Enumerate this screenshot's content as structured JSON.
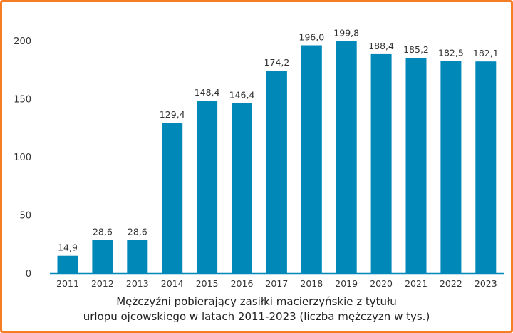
{
  "chart_data": {
    "type": "bar",
    "title_lines": [
      "Mężczyźni pobierający zasiłki macierzyńskie z tytułu",
      "urlopu ojcowskiego w latach 2011-2023 (liczba mężczyzn w tys.)"
    ],
    "categories": [
      "2011",
      "2012",
      "2013",
      "2014",
      "2015",
      "2016",
      "2017",
      "2018",
      "2019",
      "2020",
      "2021",
      "2022",
      "2023"
    ],
    "values": [
      14.9,
      28.6,
      28.6,
      129.4,
      148.4,
      146.4,
      174.2,
      196.0,
      199.8,
      188.4,
      185.2,
      182.5,
      182.1
    ],
    "labels": [
      "14,9",
      "28,6",
      "28,6",
      "129,4",
      "148,4",
      "146,4",
      "174,2",
      "196,0",
      "199,8",
      "188,4",
      "185,2",
      "182,5",
      "182,1"
    ],
    "yticks": [
      "0",
      "50",
      "100",
      "150",
      "200"
    ],
    "ylim": [
      0,
      200
    ],
    "xlabel": "",
    "ylabel": "",
    "grid": false,
    "colors": {
      "bar": "#0088b8",
      "border": "#f57e25",
      "axis": "#0088b8"
    }
  }
}
